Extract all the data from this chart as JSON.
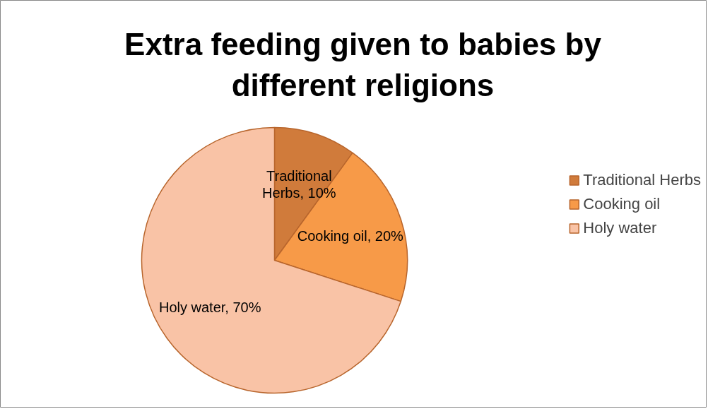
{
  "chart_data": {
    "type": "pie",
    "title": "Extra feeding given to babies by different religions",
    "categories": [
      "Traditional Herbs",
      "Cooking oil",
      "Holy water"
    ],
    "values": [
      10,
      20,
      70
    ],
    "colors": [
      "#d07b3b",
      "#f79a48",
      "#f9c3a6"
    ],
    "value_labels": [
      "Traditional Herbs, 10%",
      "Cooking oil, 20%",
      "Holy water, 70%"
    ],
    "legend": "right"
  }
}
